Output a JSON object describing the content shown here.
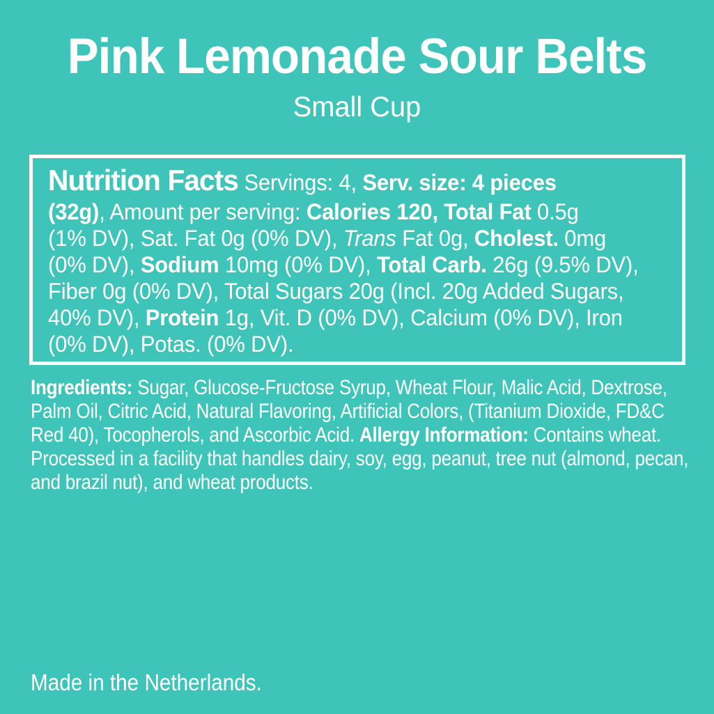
{
  "page": {
    "colors": {
      "background": "#3EC4B9",
      "text": "#FFFFFF",
      "box_border": "#FFFFFF"
    }
  },
  "header": {
    "title": "Pink Lemonade Sour Belts",
    "subtitle": "Small Cup"
  },
  "nutrition_box": {
    "lines": [
      [
        [
          "h",
          "Nutrition Facts"
        ],
        [
          "r",
          " Servings: 4, "
        ],
        [
          "b",
          "Serv. size: 4 pieces"
        ]
      ],
      [
        [
          "b",
          "(32g)"
        ],
        [
          "r",
          ", Amount per serving: "
        ],
        [
          "b",
          "Calories 120, Total Fat"
        ],
        [
          "r",
          " 0.5g"
        ]
      ],
      [
        [
          "r",
          "(1% DV), Sat. Fat 0g (0% DV), "
        ],
        [
          "i",
          "Trans"
        ],
        [
          "r",
          " Fat 0g, "
        ],
        [
          "b",
          "Cholest."
        ],
        [
          "r",
          " 0mg"
        ]
      ],
      [
        [
          "r",
          "(0% DV), "
        ],
        [
          "b",
          "Sodium"
        ],
        [
          "r",
          " 10mg (0% DV), "
        ],
        [
          "b",
          "Total Carb."
        ],
        [
          "r",
          " 26g (9.5% DV),"
        ]
      ],
      [
        [
          "r",
          "Fiber 0g (0% DV), Total Sugars 20g (Incl. 20g Added Sugars,"
        ]
      ],
      [
        [
          "r",
          "40% DV), "
        ],
        [
          "b",
          "Protein"
        ],
        [
          "r",
          " 1g, Vit. D (0% DV), Calcium (0% DV), Iron"
        ]
      ],
      [
        [
          "r",
          "(0% DV), Potas. (0% DV)."
        ]
      ]
    ]
  },
  "ingredients": {
    "lines": [
      [
        [
          "b",
          "Ingredients:"
        ],
        [
          "r",
          " Sugar, Glucose-Fructose Syrup, Wheat Flour, Malic Acid, Dextrose,"
        ]
      ],
      [
        [
          "r",
          "Palm Oil, Citric Acid, Natural Flavoring, Artificial Colors, (Titanium Dioxide, FD&C"
        ]
      ],
      [
        [
          "r",
          "Red 40), Tocopherols, and Ascorbic Acid. "
        ],
        [
          "b",
          "Allergy Information:"
        ],
        [
          "r",
          " Contains wheat."
        ]
      ],
      [
        [
          "r",
          "Processed in a facility that handles dairy, soy, egg, peanut, tree nut (almond, pecan,"
        ]
      ],
      [
        [
          "r",
          "and brazil nut), and wheat products."
        ]
      ]
    ]
  },
  "footer": {
    "origin": "Made in the Netherlands."
  }
}
